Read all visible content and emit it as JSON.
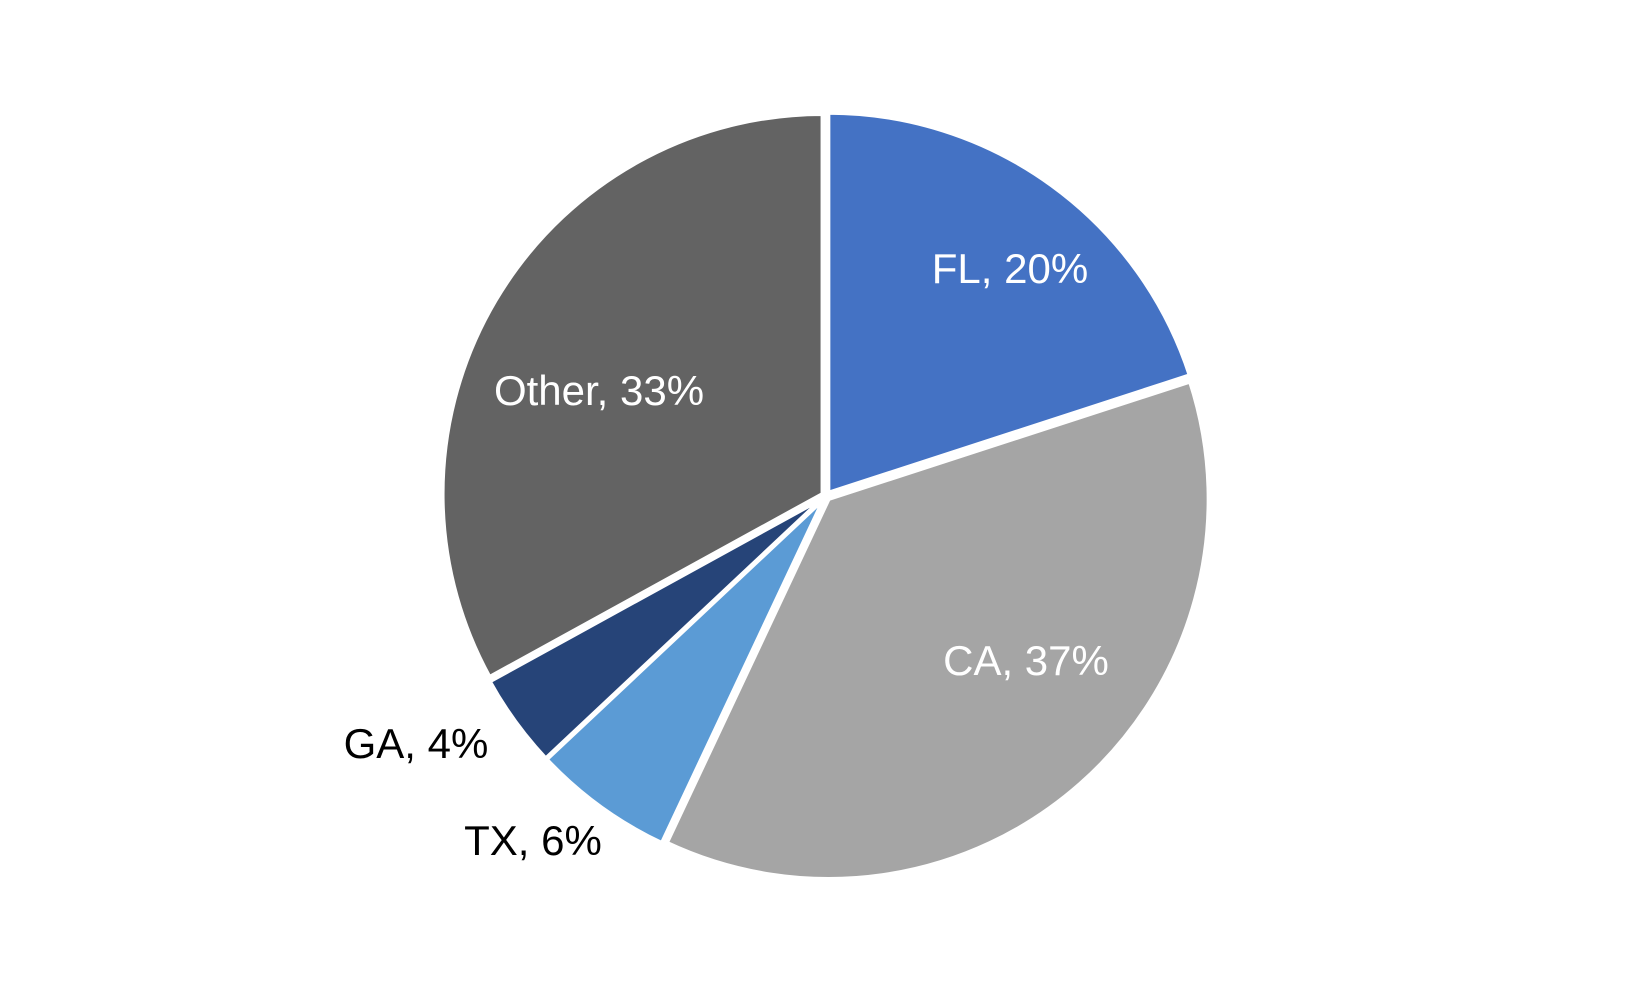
{
  "chart_data": {
    "type": "pie",
    "title": "",
    "start_angle_deg": 0,
    "direction": "clockwise",
    "slices": [
      {
        "label": "FL",
        "value": 20,
        "display": "FL, 20%",
        "color": "#4472C4",
        "label_color": "#FFFFFF"
      },
      {
        "label": "CA",
        "value": 37,
        "display": "CA, 37%",
        "color": "#A5A5A5",
        "label_color": "#FFFFFF"
      },
      {
        "label": "TX",
        "value": 6,
        "display": "TX, 6%",
        "color": "#5B9BD5",
        "label_color": "#000000"
      },
      {
        "label": "GA",
        "value": 4,
        "display": "GA, 4%",
        "color": "#264478",
        "label_color": "#000000"
      },
      {
        "label": "Other",
        "value": 33,
        "display": "Other, 33%",
        "color": "#636363",
        "label_color": "#FFFFFF"
      }
    ],
    "legend": "none",
    "separator_color": "#FFFFFF"
  }
}
